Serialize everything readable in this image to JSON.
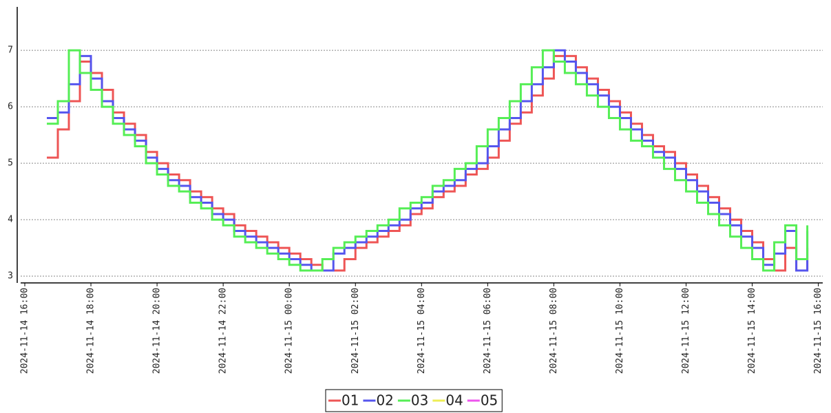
{
  "chart_data": {
    "type": "line",
    "step": true,
    "grid": true,
    "legend": "bottom",
    "x": [
      "2024-11-14 16:40",
      "2024-11-14 17:00",
      "2024-11-14 17:20",
      "2024-11-14 17:40",
      "2024-11-14 18:00",
      "2024-11-14 18:20",
      "2024-11-14 18:40",
      "2024-11-14 19:00",
      "2024-11-14 19:20",
      "2024-11-14 19:40",
      "2024-11-14 20:00",
      "2024-11-14 20:20",
      "2024-11-14 20:40",
      "2024-11-14 21:00",
      "2024-11-14 21:20",
      "2024-11-14 21:40",
      "2024-11-14 22:00",
      "2024-11-14 22:20",
      "2024-11-14 22:40",
      "2024-11-14 23:00",
      "2024-11-14 23:20",
      "2024-11-14 23:40",
      "2024-11-15 00:00",
      "2024-11-15 00:20",
      "2024-11-15 00:40",
      "2024-11-15 01:00",
      "2024-11-15 01:20",
      "2024-11-15 01:40",
      "2024-11-15 02:00",
      "2024-11-15 02:20",
      "2024-11-15 02:40",
      "2024-11-15 03:00",
      "2024-11-15 03:20",
      "2024-11-15 03:40",
      "2024-11-15 04:00",
      "2024-11-15 04:20",
      "2024-11-15 04:40",
      "2024-11-15 05:00",
      "2024-11-15 05:20",
      "2024-11-15 05:40",
      "2024-11-15 06:00",
      "2024-11-15 06:20",
      "2024-11-15 06:40",
      "2024-11-15 07:00",
      "2024-11-15 07:20",
      "2024-11-15 07:40",
      "2024-11-15 08:00",
      "2024-11-15 08:20",
      "2024-11-15 08:40",
      "2024-11-15 09:00",
      "2024-11-15 09:20",
      "2024-11-15 09:40",
      "2024-11-15 10:00",
      "2024-11-15 10:20",
      "2024-11-15 10:40",
      "2024-11-15 11:00",
      "2024-11-15 11:20",
      "2024-11-15 11:40",
      "2024-11-15 12:00",
      "2024-11-15 12:20",
      "2024-11-15 12:40",
      "2024-11-15 13:00",
      "2024-11-15 13:20",
      "2024-11-15 13:40",
      "2024-11-15 14:00",
      "2024-11-15 14:20",
      "2024-11-15 14:40",
      "2024-11-15 15:00",
      "2024-11-15 15:20",
      "2024-11-15 15:40"
    ],
    "series": [
      {
        "name": "01",
        "color": "#ee5555",
        "values": [
          5.1,
          5.6,
          6.1,
          6.8,
          6.6,
          6.3,
          5.9,
          5.7,
          5.5,
          5.2,
          5.0,
          4.8,
          4.7,
          4.5,
          4.4,
          4.2,
          4.1,
          3.9,
          3.8,
          3.7,
          3.6,
          3.5,
          3.4,
          3.3,
          3.2,
          3.1,
          3.1,
          3.3,
          3.5,
          3.6,
          3.7,
          3.8,
          3.9,
          4.1,
          4.2,
          4.4,
          4.5,
          4.6,
          4.8,
          4.9,
          5.1,
          5.4,
          5.7,
          5.9,
          6.2,
          6.5,
          6.9,
          6.9,
          6.7,
          6.5,
          6.3,
          6.1,
          5.9,
          5.7,
          5.5,
          5.3,
          5.2,
          5.0,
          4.8,
          4.6,
          4.4,
          4.2,
          4.0,
          3.8,
          3.6,
          3.3,
          3.1,
          3.5,
          3.1,
          3.5
        ]
      },
      {
        "name": "02",
        "color": "#5555ee",
        "values": [
          5.8,
          5.9,
          6.4,
          6.9,
          6.5,
          6.1,
          5.8,
          5.6,
          5.4,
          5.1,
          4.9,
          4.7,
          4.6,
          4.4,
          4.3,
          4.1,
          4.0,
          3.8,
          3.7,
          3.6,
          3.5,
          3.4,
          3.3,
          3.2,
          3.1,
          3.1,
          3.4,
          3.5,
          3.6,
          3.7,
          3.8,
          3.9,
          4.0,
          4.2,
          4.3,
          4.5,
          4.6,
          4.7,
          4.9,
          5.0,
          5.3,
          5.6,
          5.8,
          6.1,
          6.4,
          6.7,
          7.0,
          6.8,
          6.6,
          6.4,
          6.2,
          6.0,
          5.8,
          5.6,
          5.4,
          5.2,
          5.1,
          4.9,
          4.7,
          4.5,
          4.3,
          4.1,
          3.9,
          3.7,
          3.5,
          3.2,
          3.4,
          3.8,
          3.1,
          3.8
        ]
      },
      {
        "name": "03",
        "color": "#55ee55",
        "values": [
          5.7,
          6.1,
          7.0,
          6.6,
          6.3,
          6.0,
          5.7,
          5.5,
          5.3,
          5.0,
          4.8,
          4.6,
          4.5,
          4.3,
          4.2,
          4.0,
          3.9,
          3.7,
          3.6,
          3.5,
          3.4,
          3.3,
          3.2,
          3.1,
          3.1,
          3.3,
          3.5,
          3.6,
          3.7,
          3.8,
          3.9,
          4.0,
          4.2,
          4.3,
          4.4,
          4.6,
          4.7,
          4.9,
          5.0,
          5.3,
          5.6,
          5.8,
          6.1,
          6.4,
          6.7,
          7.0,
          6.8,
          6.6,
          6.4,
          6.2,
          6.0,
          5.8,
          5.6,
          5.4,
          5.3,
          5.1,
          4.9,
          4.7,
          4.5,
          4.3,
          4.1,
          3.9,
          3.7,
          3.5,
          3.3,
          3.1,
          3.6,
          3.9,
          3.3,
          3.9
        ]
      },
      {
        "name": "04",
        "color": "#eeee55",
        "values": [
          null,
          null,
          null,
          null,
          null,
          null,
          null,
          null,
          null,
          null,
          null,
          null,
          null,
          null,
          null,
          null,
          null,
          null,
          null,
          null,
          null,
          null,
          null,
          null,
          null,
          null,
          null,
          null,
          null,
          null,
          null,
          null,
          null,
          null,
          null,
          null,
          null,
          null,
          null,
          null,
          null,
          null,
          null,
          null,
          null,
          null,
          null,
          null,
          null,
          null,
          null,
          null,
          null,
          null,
          null,
          null,
          null,
          null,
          null,
          null,
          null,
          null,
          null,
          null,
          null,
          null,
          null,
          null,
          null,
          null
        ]
      },
      {
        "name": "05",
        "color": "#ee55ee",
        "values": [
          null,
          null,
          null,
          null,
          null,
          null,
          null,
          null,
          null,
          null,
          null,
          null,
          null,
          null,
          null,
          null,
          null,
          null,
          null,
          null,
          null,
          null,
          null,
          null,
          null,
          null,
          null,
          null,
          null,
          null,
          null,
          null,
          null,
          null,
          null,
          null,
          null,
          null,
          null,
          null,
          null,
          null,
          null,
          null,
          null,
          null,
          null,
          null,
          null,
          null,
          null,
          null,
          null,
          null,
          null,
          null,
          null,
          null,
          null,
          null,
          null,
          null,
          null,
          null,
          null,
          null,
          null,
          null,
          null,
          null
        ]
      }
    ],
    "xlim": [
      "2024-11-14 15:50",
      "2024-11-15 16:08"
    ],
    "xticks": [
      "2024-11-14 16:00",
      "2024-11-14 18:00",
      "2024-11-14 20:00",
      "2024-11-14 22:00",
      "2024-11-15 00:00",
      "2024-11-15 02:00",
      "2024-11-15 04:00",
      "2024-11-15 06:00",
      "2024-11-15 08:00",
      "2024-11-15 10:00",
      "2024-11-15 12:00",
      "2024-11-15 14:00",
      "2024-11-15 16:00"
    ],
    "ylim": [
      2.88,
      7.77
    ],
    "yticks": [
      3,
      4,
      5,
      6,
      7
    ]
  }
}
